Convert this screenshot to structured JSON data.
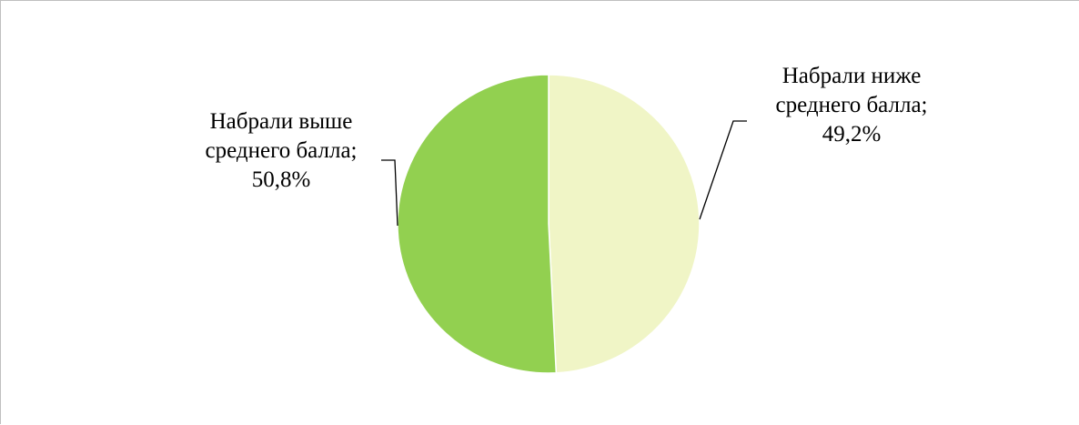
{
  "chart_data": {
    "type": "pie",
    "slices": [
      {
        "label_lines": [
          "Набрали ниже",
          "среднего балла;"
        ],
        "percent_label": "49,2%",
        "value": 49.2,
        "color": "#F0F5C6"
      },
      {
        "label_lines": [
          "Набрали выше",
          "среднего балла;"
        ],
        "percent_label": "50,8%",
        "value": 50.8,
        "color": "#92D050"
      }
    ],
    "data_labels": "outside-with-leader-lines",
    "legend": "none"
  }
}
